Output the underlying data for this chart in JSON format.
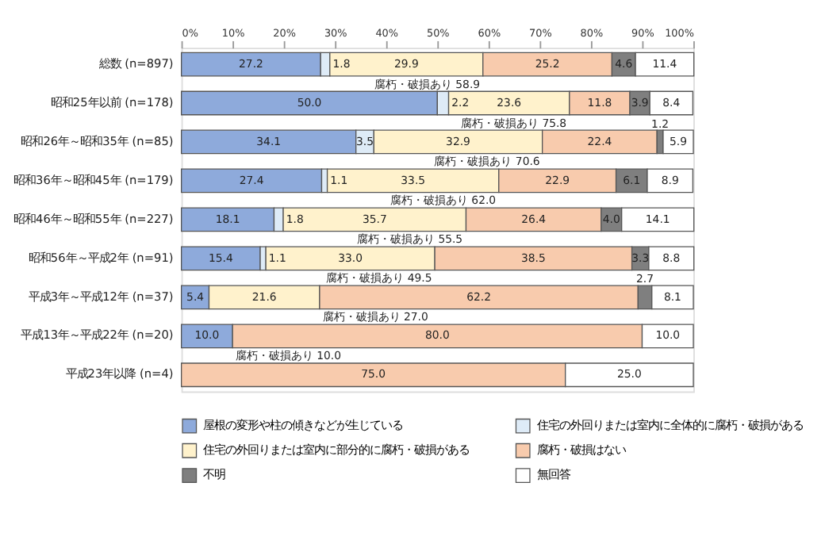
{
  "chart_data": {
    "type": "bar",
    "orientation": "horizontal",
    "stacked": true,
    "legend": "bottom",
    "grid": false,
    "categories": [
      "総数 (n=897)",
      "昭和25年以前 (n=178)",
      "昭和26年～昭和35年 (n=85)",
      "昭和36年～昭和45年 (n=179)",
      "昭和46年～昭和55年 (n=227)",
      "昭和56年～平成2年 (n=91)",
      "平成3年～平成12年 (n=37)",
      "平成13年～平成22年 (n=20)",
      "平成23年以降 (n=4)"
    ],
    "xlim": [
      0,
      100
    ],
    "xticks": [
      {
        "value": 0,
        "label": "0%"
      },
      {
        "value": 10,
        "label": "10%"
      },
      {
        "value": 20,
        "label": "20%"
      },
      {
        "value": 30,
        "label": "30%"
      },
      {
        "value": 40,
        "label": "40%"
      },
      {
        "value": 50,
        "label": "50%"
      },
      {
        "value": 60,
        "label": "60%"
      },
      {
        "value": 70,
        "label": "70%"
      },
      {
        "value": 80,
        "label": "80%"
      },
      {
        "value": 90,
        "label": "90%"
      },
      {
        "value": 100,
        "label": "100%"
      }
    ],
    "series": [
      {
        "name": "屋根の変形や柱の傾きなどが生じている",
        "color": "#8eaadb",
        "values": [
          27.2,
          50.0,
          34.1,
          27.4,
          18.1,
          15.4,
          5.4,
          10.0,
          0
        ],
        "value_labels": [
          "27.2",
          "50.0",
          "34.1",
          "27.4",
          "18.1",
          "15.4",
          "5.4",
          "10.0",
          null
        ]
      },
      {
        "name": "住宅の外回りまたは室内に全体的に腐朽・破損がある",
        "color": "#deebf7",
        "values": [
          1.8,
          2.2,
          3.5,
          1.1,
          1.8,
          1.1,
          0,
          0,
          0
        ],
        "value_labels": [
          "1.8",
          "2.2",
          "3.5",
          "1.1",
          "1.8",
          "1.1",
          null,
          null,
          null
        ]
      },
      {
        "name": "住宅の外回りまたは室内に部分的に腐朽・破損がある",
        "color": "#fff2cc",
        "values": [
          29.9,
          23.6,
          32.9,
          33.5,
          35.7,
          33.0,
          21.6,
          0,
          0
        ],
        "value_labels": [
          "29.9",
          "23.6",
          "32.9",
          "33.5",
          "35.7",
          "33.0",
          "21.6",
          null,
          null
        ]
      },
      {
        "name": "腐朽・破損はない",
        "color": "#f8cbad",
        "values": [
          25.2,
          11.8,
          22.4,
          22.9,
          26.4,
          38.5,
          62.2,
          80.0,
          75.0
        ],
        "value_labels": [
          "25.2",
          "11.8",
          "22.4",
          "22.9",
          "26.4",
          "38.5",
          "62.2",
          "80.0",
          "75.0"
        ]
      },
      {
        "name": "不明",
        "color": "#7f7f7f",
        "values": [
          4.6,
          3.9,
          1.2,
          6.1,
          4.0,
          3.3,
          2.7,
          0,
          0
        ],
        "value_labels": [
          "4.6",
          "3.9",
          "1.2",
          "6.1",
          "4.0",
          "3.3",
          "2.7",
          null,
          null
        ]
      },
      {
        "name": "無回答",
        "color": "#ffffff",
        "values": [
          11.4,
          8.4,
          5.9,
          8.9,
          14.1,
          8.8,
          8.1,
          10.0,
          25.0
        ],
        "value_labels": [
          "11.4",
          "8.4",
          "5.9",
          "8.9",
          "14.1",
          "8.8",
          "8.1",
          "10.0",
          "25.0"
        ]
      }
    ],
    "annotations": [
      {
        "text": "腐朽・破損あり 58.9",
        "x": 58.9,
        "y": "総数 (n=897)"
      },
      {
        "text": "腐朽・破損あり 75.8",
        "x": 75.8,
        "y": "昭和25年以前 (n=178)"
      },
      {
        "text": "腐朽・破損あり 70.6",
        "x": 70.6,
        "y": "昭和26年～昭和35年 (n=85)"
      },
      {
        "text": "腐朽・破損あり 62.0",
        "x": 62.0,
        "y": "昭和36年～昭和45年 (n=179)"
      },
      {
        "text": "腐朽・破損あり 55.5",
        "x": 55.5,
        "y": "昭和46年～昭和55年 (n=227)"
      },
      {
        "text": "腐朽・破損あり 49.5",
        "x": 49.5,
        "y": "昭和56年～平成2年 (n=91)"
      },
      {
        "text": "腐朽・破損あり 27.0",
        "x": 27.0,
        "y": "平成3年～平成12年 (n=37)"
      },
      {
        "text": "腐朽・破損あり 10.0",
        "x": 10.0,
        "y": "平成13年～平成22年 (n=20)"
      }
    ]
  }
}
